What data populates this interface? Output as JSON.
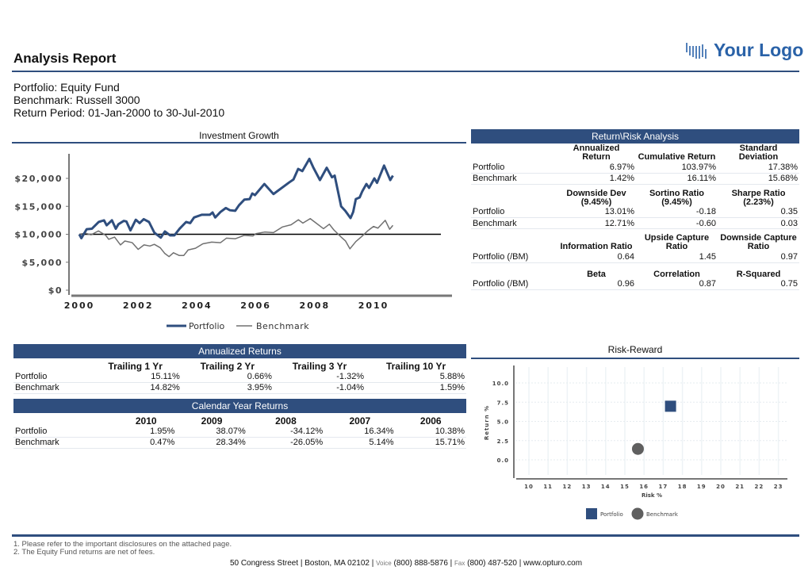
{
  "header": {
    "title": "Analysis Report",
    "logo_text": "Your Logo"
  },
  "info": {
    "portfolio": "Portfolio: Equity Fund",
    "benchmark": "Benchmark: Russell 3000",
    "period": "Return Period: 01-Jan-2000 to 30-Jul-2010"
  },
  "risk_table": {
    "title": "Return\\Risk Analysis",
    "groups": [
      {
        "headers": [
          "Annualized Return",
          "Cumulative Return",
          "Standard Deviation"
        ],
        "rows": [
          [
            "Portfolio",
            "6.97%",
            "103.97%",
            "17.38%"
          ],
          [
            "Benchmark",
            "1.42%",
            "16.11%",
            "15.68%"
          ]
        ]
      },
      {
        "headers": [
          "Downside Dev (9.45%)",
          "Sortino Ratio (9.45%)",
          "Sharpe Ratio (2.23%)"
        ],
        "rows": [
          [
            "Portfolio",
            "13.01%",
            "-0.18",
            "0.35"
          ],
          [
            "Benchmark",
            "12.71%",
            "-0.60",
            "0.03"
          ]
        ]
      },
      {
        "headers": [
          "Information Ratio",
          "Upside Capture Ratio",
          "Downside Capture Ratio"
        ],
        "rows": [
          [
            "Portfolio (/BM)",
            "0.64",
            "1.45",
            "0.97"
          ]
        ]
      },
      {
        "headers": [
          "Beta",
          "Correlation",
          "R-Squared"
        ],
        "rows": [
          [
            "Portfolio (/BM)",
            "0.96",
            "0.87",
            "0.75"
          ]
        ]
      }
    ]
  },
  "annualized": {
    "title": "Annualized Returns",
    "headers": [
      "Trailing 1 Yr",
      "Trailing 2 Yr",
      "Trailing 3 Yr",
      "Trailing 10 Yr"
    ],
    "rows": [
      [
        "Portfolio",
        "15.11%",
        "0.66%",
        "-1.32%",
        "5.88%"
      ],
      [
        "Benchmark",
        "14.82%",
        "3.95%",
        "-1.04%",
        "1.59%"
      ]
    ]
  },
  "calendar": {
    "title": "Calendar Year Returns",
    "headers": [
      "2010",
      "2009",
      "2008",
      "2007",
      "2006"
    ],
    "rows": [
      [
        "Portfolio",
        "1.95%",
        "38.07%",
        "-34.12%",
        "16.34%",
        "10.38%"
      ],
      [
        "Benchmark",
        "0.47%",
        "28.34%",
        "-26.05%",
        "5.14%",
        "15.71%"
      ]
    ]
  },
  "footer": {
    "notes": [
      "1. Please refer to the important disclosures on the attached page.",
      "2. The Equity Fund returns are net of fees."
    ],
    "address": "50 Congress Street | Boston, MA 02102 | ",
    "voice_label": "Voice",
    "voice": " (800) 888-5876 | ",
    "fax_label": "Fax",
    "fax": " (800) 487-520  | www.opturo.com"
  },
  "colors": {
    "accent": "#2f4e7e",
    "benchmark": "#707070"
  },
  "chart_data": [
    {
      "type": "line",
      "title": "Investment Growth",
      "ylim": [
        0,
        24000
      ],
      "xlim": [
        2000,
        2010.84
      ],
      "yticks": [
        0,
        5000,
        10000,
        15000,
        20000
      ],
      "ytick_labels": [
        "$0",
        "$5,000",
        "$10,000",
        "$15,000",
        "$20,000"
      ],
      "xticks": [
        2000,
        2002,
        2004,
        2006,
        2008,
        2010
      ],
      "xtick_labels": [
        "2000",
        "2002",
        "2004",
        "2006",
        "2008",
        "2010"
      ],
      "reference_line": 10000,
      "legend": "bottom",
      "series": [
        {
          "name": "Portfolio",
          "points": [
            [
              2000,
              10000
            ],
            [
              2000.07,
              9300
            ],
            [
              2000.25,
              10900
            ],
            [
              2000.43,
              11000
            ],
            [
              2000.66,
              12200
            ],
            [
              2000.84,
              12500
            ],
            [
              2000.93,
              11600
            ],
            [
              2001.11,
              12500
            ],
            [
              2001.24,
              11000
            ],
            [
              2001.33,
              11800
            ],
            [
              2001.51,
              12400
            ],
            [
              2001.6,
              12300
            ],
            [
              2001.74,
              10700
            ],
            [
              2001.92,
              12600
            ],
            [
              2002.05,
              12000
            ],
            [
              2002.19,
              12700
            ],
            [
              2002.37,
              12200
            ],
            [
              2002.55,
              10300
            ],
            [
              2002.77,
              9400
            ],
            [
              2002.91,
              10500
            ],
            [
              2003.09,
              9800
            ],
            [
              2003.23,
              9800
            ],
            [
              2003.41,
              11000
            ],
            [
              2003.63,
              12200
            ],
            [
              2003.77,
              12000
            ],
            [
              2003.9,
              13000
            ],
            [
              2004.17,
              13500
            ],
            [
              2004.44,
              13500
            ],
            [
              2004.53,
              13900
            ],
            [
              2004.62,
              13000
            ],
            [
              2004.8,
              14000
            ],
            [
              2004.98,
              14700
            ],
            [
              2005.12,
              14300
            ],
            [
              2005.3,
              14200
            ],
            [
              2005.43,
              15200
            ],
            [
              2005.61,
              16200
            ],
            [
              2005.79,
              16300
            ],
            [
              2005.88,
              17300
            ],
            [
              2005.97,
              17000
            ],
            [
              2006.29,
              19000
            ],
            [
              2006.6,
              17200
            ],
            [
              2007.14,
              19300
            ],
            [
              2007.28,
              19800
            ],
            [
              2007.44,
              21700
            ],
            [
              2007.58,
              21300
            ],
            [
              2007.82,
              23500
            ],
            [
              2007.95,
              22000
            ],
            [
              2008.18,
              19700
            ],
            [
              2008.41,
              21900
            ],
            [
              2008.59,
              20200
            ],
            [
              2008.68,
              20500
            ],
            [
              2008.9,
              15000
            ],
            [
              2009.04,
              14200
            ],
            [
              2009.22,
              12900
            ],
            [
              2009.31,
              14000
            ],
            [
              2009.4,
              16300
            ],
            [
              2009.53,
              16600
            ],
            [
              2009.62,
              17700
            ],
            [
              2009.76,
              19000
            ],
            [
              2009.85,
              18300
            ],
            [
              2010.03,
              20000
            ],
            [
              2010.12,
              19200
            ],
            [
              2010.36,
              22300
            ],
            [
              2010.57,
              19700
            ],
            [
              2010.66,
              20500
            ]
          ]
        },
        {
          "name": "Benchmark",
          "points": [
            [
              2000,
              10000
            ],
            [
              2000.2,
              10200
            ],
            [
              2000.4,
              9900
            ],
            [
              2000.65,
              10600
            ],
            [
              2000.9,
              9800
            ],
            [
              2001,
              9100
            ],
            [
              2001.2,
              9500
            ],
            [
              2001.4,
              8100
            ],
            [
              2001.55,
              8800
            ],
            [
              2001.8,
              8500
            ],
            [
              2002,
              7300
            ],
            [
              2002.2,
              8100
            ],
            [
              2002.4,
              7900
            ],
            [
              2002.55,
              8200
            ],
            [
              2002.75,
              7600
            ],
            [
              2002.9,
              6600
            ],
            [
              2003.05,
              6000
            ],
            [
              2003.2,
              6700
            ],
            [
              2003.4,
              6200
            ],
            [
              2003.55,
              6200
            ],
            [
              2003.7,
              7200
            ],
            [
              2003.95,
              7500
            ],
            [
              2004.2,
              8300
            ],
            [
              2004.5,
              8600
            ],
            [
              2004.8,
              8500
            ],
            [
              2005,
              9300
            ],
            [
              2005.3,
              9200
            ],
            [
              2005.6,
              9800
            ],
            [
              2005.9,
              9700
            ],
            [
              2006,
              10100
            ],
            [
              2006.3,
              10400
            ],
            [
              2006.6,
              10300
            ],
            [
              2006.9,
              11300
            ],
            [
              2007.2,
              11700
            ],
            [
              2007.45,
              12600
            ],
            [
              2007.6,
              12000
            ],
            [
              2007.85,
              12800
            ],
            [
              2008.05,
              12000
            ],
            [
              2008.3,
              11000
            ],
            [
              2008.5,
              11800
            ],
            [
              2008.65,
              10800
            ],
            [
              2008.9,
              9500
            ],
            [
              2009.05,
              8800
            ],
            [
              2009.2,
              7400
            ],
            [
              2009.4,
              8700
            ],
            [
              2009.6,
              9600
            ],
            [
              2009.8,
              10600
            ],
            [
              2010,
              11400
            ],
            [
              2010.15,
              11100
            ],
            [
              2010.4,
              12500
            ],
            [
              2010.55,
              10900
            ],
            [
              2010.66,
              11600
            ]
          ]
        }
      ]
    },
    {
      "type": "scatter",
      "title": "Risk-Reward",
      "xlabel": "Risk %",
      "ylabel": "Return %",
      "xlim": [
        9.3,
        23.4
      ],
      "ylim": [
        -1.9,
        12.2
      ],
      "xticks": [
        10,
        11,
        12,
        13,
        14,
        15,
        16,
        17,
        18,
        19,
        20,
        21,
        22,
        23
      ],
      "yticks": [
        0,
        2.5,
        5,
        7.5,
        10
      ],
      "ytick_labels": [
        "0.0",
        "2.5",
        "5.0",
        "7.5",
        "10.0"
      ],
      "legend": "bottom",
      "points": [
        {
          "name": "Portfolio",
          "x": 17.38,
          "y": 6.97,
          "marker": "square"
        },
        {
          "name": "Benchmark",
          "x": 15.68,
          "y": 1.42,
          "marker": "circle"
        }
      ]
    }
  ]
}
